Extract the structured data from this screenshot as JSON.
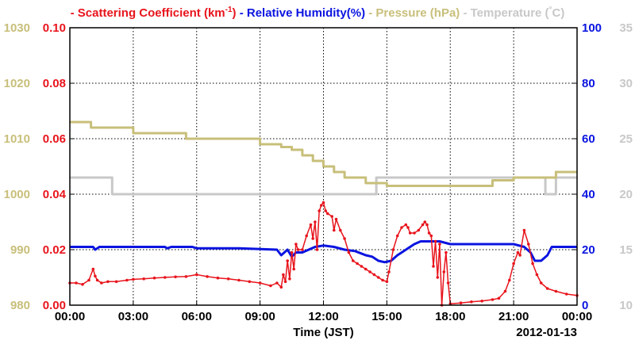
{
  "chart_data": {
    "type": "line",
    "title": "",
    "xlabel": "Time (JST)",
    "date_label": "2012-01-13",
    "x_ticks": [
      "00:00",
      "03:00",
      "06:00",
      "09:00",
      "12:00",
      "15:00",
      "18:00",
      "21:00",
      "00:00"
    ],
    "x_range_hours": [
      0,
      24
    ],
    "grid": true,
    "legend_position": "top",
    "axes": {
      "pressure": {
        "label": "Pressure (hPa)",
        "color": "#c8bf7a",
        "range": [
          980,
          1030
        ],
        "ticks": [
          "980",
          "990",
          "1000",
          "1010",
          "1020",
          "1030"
        ],
        "side": "left-outer"
      },
      "scattering": {
        "label": "Scattering Coefficient (km⁻¹)",
        "color": "#e8141c",
        "range": [
          0,
          0.1
        ],
        "ticks": [
          "0.00",
          "0.02",
          "0.04",
          "0.06",
          "0.08",
          "0.10"
        ],
        "side": "left-inner"
      },
      "humidity": {
        "label": "Relative Humidity(%)",
        "color": "#0a14e0",
        "range": [
          0,
          100
        ],
        "ticks": [
          "0",
          "20",
          "40",
          "60",
          "80",
          "100"
        ],
        "side": "right-inner"
      },
      "temperature": {
        "label": "Temperature (C)",
        "color": "#c8c8c8",
        "range": [
          10,
          35
        ],
        "ticks": [
          "10",
          "15",
          "20",
          "25",
          "30",
          "35"
        ],
        "side": "right-outer"
      }
    },
    "legend": [
      {
        "text": "Scattering Coefficient (km",
        "sup": "-1",
        "close": ")",
        "color": "#e8141c"
      },
      {
        "text": "Relative Humidity(%)",
        "color": "#0a14e0"
      },
      {
        "text": "Pressure (hPa)",
        "color": "#c8bf7a"
      },
      {
        "text": "Temperature (",
        "sup": "°",
        "close": "C)",
        "color": "#c8c8c8"
      }
    ],
    "series": [
      {
        "name": "Scattering Coefficient",
        "axis": "scattering",
        "step": false,
        "markers": true,
        "x": [
          0,
          0.3,
          0.6,
          0.9,
          1.1,
          1.2,
          1.3,
          1.5,
          1.8,
          2.2,
          2.7,
          3.0,
          3.5,
          4.0,
          4.5,
          5.0,
          5.5,
          6.0,
          6.5,
          7.0,
          7.5,
          8.0,
          8.5,
          9.0,
          9.5,
          9.8,
          10.0,
          10.1,
          10.2,
          10.3,
          10.4,
          10.5,
          10.6,
          10.7,
          10.8,
          11.0,
          11.2,
          11.4,
          11.5,
          11.6,
          11.7,
          11.8,
          11.9,
          12.0,
          12.1,
          12.2,
          12.4,
          12.5,
          12.6,
          12.8,
          13.0,
          13.2,
          13.4,
          13.6,
          13.8,
          14.0,
          14.2,
          14.4,
          14.6,
          14.8,
          15.0,
          15.1,
          15.3,
          15.5,
          15.7,
          15.9,
          16.0,
          16.1,
          16.3,
          16.5,
          16.7,
          16.8,
          16.9,
          17.0,
          17.1,
          17.2,
          17.3,
          17.4,
          17.5,
          17.6,
          17.7,
          17.8,
          17.9,
          18.0,
          18.5,
          19.0,
          19.5,
          20.0,
          20.3,
          20.6,
          20.8,
          21.0,
          21.2,
          21.3,
          21.5,
          21.7,
          21.9,
          22.1,
          22.3,
          22.6,
          23.0,
          23.5,
          24.0
        ],
        "values": [
          0.008,
          0.008,
          0.0075,
          0.009,
          0.013,
          0.0105,
          0.009,
          0.008,
          0.0085,
          0.0085,
          0.009,
          0.0093,
          0.0095,
          0.0098,
          0.01,
          0.0102,
          0.0103,
          0.011,
          0.0103,
          0.0098,
          0.0095,
          0.009,
          0.0085,
          0.008,
          0.007,
          0.008,
          0.0065,
          0.011,
          0.0085,
          0.016,
          0.0095,
          0.019,
          0.013,
          0.022,
          0.02,
          0.02,
          0.025,
          0.029,
          0.024,
          0.03,
          0.02,
          0.034,
          0.036,
          0.037,
          0.034,
          0.033,
          0.032,
          0.027,
          0.031,
          0.027,
          0.024,
          0.019,
          0.016,
          0.015,
          0.014,
          0.013,
          0.012,
          0.011,
          0.01,
          0.009,
          0.0085,
          0.012,
          0.02,
          0.025,
          0.028,
          0.029,
          0.028,
          0.026,
          0.026,
          0.027,
          0.029,
          0.03,
          0.029,
          0.026,
          0.025,
          0.014,
          0.023,
          0.01,
          0.022,
          0.0,
          0.012,
          0.019,
          0.008,
          0.0005,
          0.0008,
          0.0012,
          0.0015,
          0.002,
          0.0025,
          0.005,
          0.009,
          0.015,
          0.019,
          0.018,
          0.027,
          0.022,
          0.015,
          0.011,
          0.008,
          0.006,
          0.005,
          0.004,
          0.0035
        ]
      },
      {
        "name": "Relative Humidity",
        "axis": "humidity",
        "step": false,
        "markers": false,
        "x": [
          0,
          1.1,
          1.2,
          1.4,
          4.5,
          4.6,
          4.8,
          5.8,
          6.0,
          8.0,
          9.8,
          10.0,
          10.3,
          10.5,
          10.7,
          11.0,
          11.3,
          11.6,
          12.0,
          12.5,
          13.0,
          13.5,
          14.0,
          14.3,
          14.6,
          14.9,
          15.2,
          15.5,
          15.8,
          16.0,
          16.3,
          16.6,
          17.0,
          17.5,
          18.0,
          18.5,
          19.0,
          20.0,
          21.0,
          21.5,
          21.8,
          22.0,
          22.3,
          22.6,
          22.8,
          23.0,
          24.0
        ],
        "values": [
          21,
          21,
          20,
          21,
          21,
          20.5,
          21,
          21,
          20.5,
          20.5,
          20,
          18,
          20,
          17.5,
          19,
          19,
          20,
          21,
          21.5,
          21,
          20,
          19.5,
          18,
          17.5,
          16,
          15.5,
          16,
          18,
          19.5,
          20.5,
          22,
          23,
          23,
          23,
          22,
          22,
          22,
          22,
          22,
          21,
          19,
          16,
          16,
          18,
          21,
          21,
          21
        ]
      },
      {
        "name": "Pressure",
        "axis": "pressure",
        "step": true,
        "markers": false,
        "x": [
          0,
          1.0,
          3.0,
          5.5,
          8.0,
          9.0,
          10.0,
          10.5,
          11.0,
          11.5,
          12.0,
          12.5,
          13.0,
          14.0,
          15.0,
          16.0,
          17.0,
          18.0,
          19.0,
          20.0,
          21.0,
          22.0,
          23.0,
          24.0
        ],
        "values": [
          1013,
          1012,
          1011,
          1010,
          1010,
          1009,
          1008.5,
          1008,
          1007,
          1006,
          1005,
          1004,
          1003,
          1002,
          1001.5,
          1001.5,
          1001.5,
          1001.5,
          1001.5,
          1002.5,
          1003,
          1003,
          1004,
          1004
        ]
      },
      {
        "name": "Temperature",
        "axis": "temperature",
        "step": true,
        "markers": false,
        "x": [
          0,
          1.5,
          2.0,
          14.0,
          14.5,
          22.5,
          23.0,
          24.0
        ],
        "values": [
          21.5,
          21.5,
          20,
          20,
          21.5,
          20,
          21.5,
          21.5
        ]
      }
    ]
  }
}
